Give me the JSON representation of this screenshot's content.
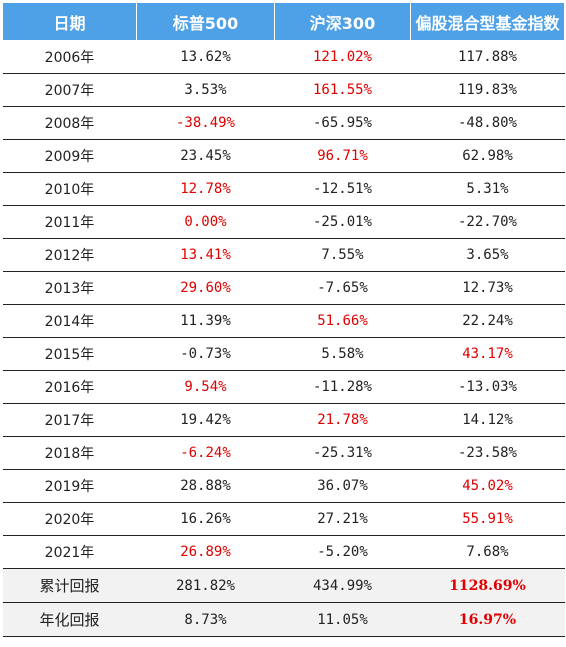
{
  "header": {
    "col_date": "日期",
    "col_sp500": "标普500",
    "col_hs300": "沪深300",
    "col_mixed": "偏股混合型基金指数"
  },
  "colors": {
    "header_bg": "#4ea1e6",
    "highlight": "#e00000",
    "summary_bg": "#f2f2f2"
  },
  "rows": [
    {
      "year": "2006年",
      "sp500": "13.62%",
      "hs300": "121.02%",
      "mixed": "117.88%",
      "best": "hs300"
    },
    {
      "year": "2007年",
      "sp500": "3.53%",
      "hs300": "161.55%",
      "mixed": "119.83%",
      "best": "hs300"
    },
    {
      "year": "2008年",
      "sp500": "-38.49%",
      "hs300": "-65.95%",
      "mixed": "-48.80%",
      "best": "sp500"
    },
    {
      "year": "2009年",
      "sp500": "23.45%",
      "hs300": "96.71%",
      "mixed": "62.98%",
      "best": "hs300"
    },
    {
      "year": "2010年",
      "sp500": "12.78%",
      "hs300": "-12.51%",
      "mixed": "5.31%",
      "best": "sp500"
    },
    {
      "year": "2011年",
      "sp500": "0.00%",
      "hs300": "-25.01%",
      "mixed": "-22.70%",
      "best": "sp500"
    },
    {
      "year": "2012年",
      "sp500": "13.41%",
      "hs300": "7.55%",
      "mixed": "3.65%",
      "best": "sp500"
    },
    {
      "year": "2013年",
      "sp500": "29.60%",
      "hs300": "-7.65%",
      "mixed": "12.73%",
      "best": "sp500"
    },
    {
      "year": "2014年",
      "sp500": "11.39%",
      "hs300": "51.66%",
      "mixed": "22.24%",
      "best": "hs300"
    },
    {
      "year": "2015年",
      "sp500": "-0.73%",
      "hs300": "5.58%",
      "mixed": "43.17%",
      "best": "mixed"
    },
    {
      "year": "2016年",
      "sp500": "9.54%",
      "hs300": "-11.28%",
      "mixed": "-13.03%",
      "best": "sp500"
    },
    {
      "year": "2017年",
      "sp500": "19.42%",
      "hs300": "21.78%",
      "mixed": "14.12%",
      "best": "hs300"
    },
    {
      "year": "2018年",
      "sp500": "-6.24%",
      "hs300": "-25.31%",
      "mixed": "-23.58%",
      "best": "sp500"
    },
    {
      "year": "2019年",
      "sp500": "28.88%",
      "hs300": "36.07%",
      "mixed": "45.02%",
      "best": "mixed"
    },
    {
      "year": "2020年",
      "sp500": "16.26%",
      "hs300": "27.21%",
      "mixed": "55.91%",
      "best": "mixed"
    },
    {
      "year": "2021年",
      "sp500": "26.89%",
      "hs300": "-5.20%",
      "mixed": "7.68%",
      "best": "sp500"
    }
  ],
  "summary": [
    {
      "label": "累计回报",
      "sp500": "281.82%",
      "hs300": "434.99%",
      "mixed": "1128.69%",
      "best": "mixed"
    },
    {
      "label": "年化回报",
      "sp500": "8.73%",
      "hs300": "11.05%",
      "mixed": "16.97%",
      "best": "mixed"
    }
  ]
}
